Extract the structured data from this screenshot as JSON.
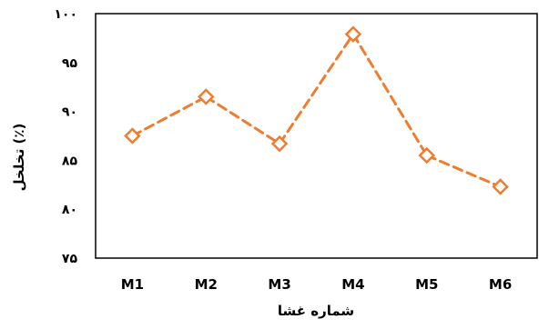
{
  "colors": {
    "series_line": "#ED7D31",
    "marker_fill": "#FFFFFF",
    "axis": "#000000",
    "background": "#FFFFFF"
  },
  "chart_data": {
    "type": "line",
    "title": "",
    "xlabel": "شماره غشا",
    "ylabel": "تخلخل (٪)",
    "categories": [
      "M1",
      "M2",
      "M3",
      "M4",
      "M5",
      "M6"
    ],
    "ylim": [
      75,
      100
    ],
    "yticks": [
      75,
      80,
      85,
      90,
      95,
      100
    ],
    "ytick_labels": [
      "۷۵",
      "۸۰",
      "۸۵",
      "۹۰",
      "۹۵",
      "۱۰۰"
    ],
    "grid": false,
    "legend": "none",
    "series": [
      {
        "values": [
          87.5,
          91.5,
          86.7,
          97.9,
          85.5,
          82.3
        ],
        "line_style": "dashed",
        "marker": "diamond-open"
      }
    ]
  }
}
